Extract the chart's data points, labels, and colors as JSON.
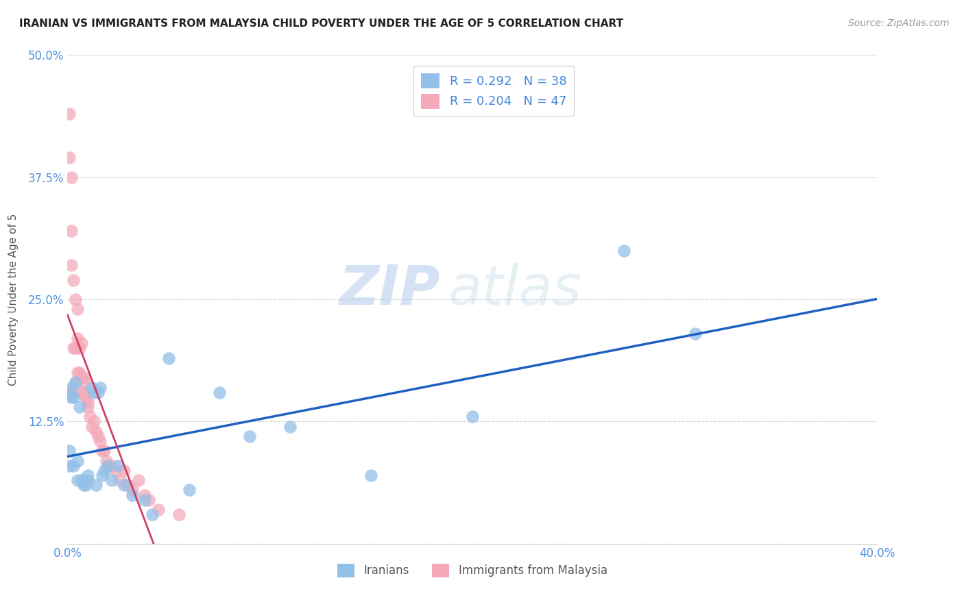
{
  "title": "IRANIAN VS IMMIGRANTS FROM MALAYSIA CHILD POVERTY UNDER THE AGE OF 5 CORRELATION CHART",
  "source": "Source: ZipAtlas.com",
  "ylabel": "Child Poverty Under the Age of 5",
  "xlim": [
    0.0,
    0.4
  ],
  "ylim": [
    0.0,
    0.5
  ],
  "xticks": [
    0.0,
    0.1,
    0.2,
    0.3,
    0.4
  ],
  "yticks": [
    0.0,
    0.125,
    0.25,
    0.375,
    0.5
  ],
  "iranian_color": "#92c0e8",
  "malaysia_color": "#f4aabb",
  "trend_iranian_color": "#2060c0",
  "trend_malaysia_color": "#d04060",
  "diag_color": "#e0a0b0",
  "R_iranian": 0.292,
  "N_iranian": 38,
  "R_malaysia": 0.204,
  "N_malaysia": 47,
  "background_color": "#ffffff",
  "watermark_zip": "ZIP",
  "watermark_atlas": "atlas",
  "iranians_x": [
    0.001,
    0.001,
    0.002,
    0.002,
    0.003,
    0.003,
    0.004,
    0.005,
    0.005,
    0.006,
    0.007,
    0.008,
    0.009,
    0.01,
    0.01,
    0.012,
    0.013,
    0.014,
    0.015,
    0.016,
    0.017,
    0.018,
    0.02,
    0.022,
    0.025,
    0.028,
    0.032,
    0.038,
    0.042,
    0.05,
    0.06,
    0.075,
    0.09,
    0.11,
    0.15,
    0.2,
    0.275,
    0.31
  ],
  "iranians_y": [
    0.08,
    0.095,
    0.15,
    0.16,
    0.15,
    0.08,
    0.165,
    0.085,
    0.065,
    0.14,
    0.065,
    0.06,
    0.06,
    0.065,
    0.07,
    0.16,
    0.155,
    0.06,
    0.155,
    0.16,
    0.07,
    0.075,
    0.08,
    0.065,
    0.08,
    0.06,
    0.05,
    0.045,
    0.03,
    0.19,
    0.055,
    0.155,
    0.11,
    0.12,
    0.07,
    0.13,
    0.3,
    0.215
  ],
  "malaysia_x": [
    0.001,
    0.001,
    0.001,
    0.002,
    0.002,
    0.002,
    0.003,
    0.003,
    0.003,
    0.004,
    0.004,
    0.004,
    0.005,
    0.005,
    0.005,
    0.006,
    0.006,
    0.007,
    0.007,
    0.007,
    0.008,
    0.008,
    0.009,
    0.009,
    0.01,
    0.01,
    0.011,
    0.012,
    0.013,
    0.014,
    0.015,
    0.016,
    0.017,
    0.018,
    0.019,
    0.02,
    0.022,
    0.024,
    0.026,
    0.028,
    0.03,
    0.032,
    0.035,
    0.038,
    0.04,
    0.045,
    0.055
  ],
  "malaysia_y": [
    0.44,
    0.395,
    0.155,
    0.375,
    0.32,
    0.285,
    0.27,
    0.2,
    0.155,
    0.25,
    0.2,
    0.165,
    0.24,
    0.21,
    0.175,
    0.2,
    0.175,
    0.205,
    0.17,
    0.155,
    0.17,
    0.155,
    0.165,
    0.15,
    0.145,
    0.14,
    0.13,
    0.12,
    0.125,
    0.115,
    0.11,
    0.105,
    0.095,
    0.095,
    0.085,
    0.08,
    0.08,
    0.075,
    0.065,
    0.075,
    0.06,
    0.055,
    0.065,
    0.05,
    0.045,
    0.035,
    0.03
  ]
}
